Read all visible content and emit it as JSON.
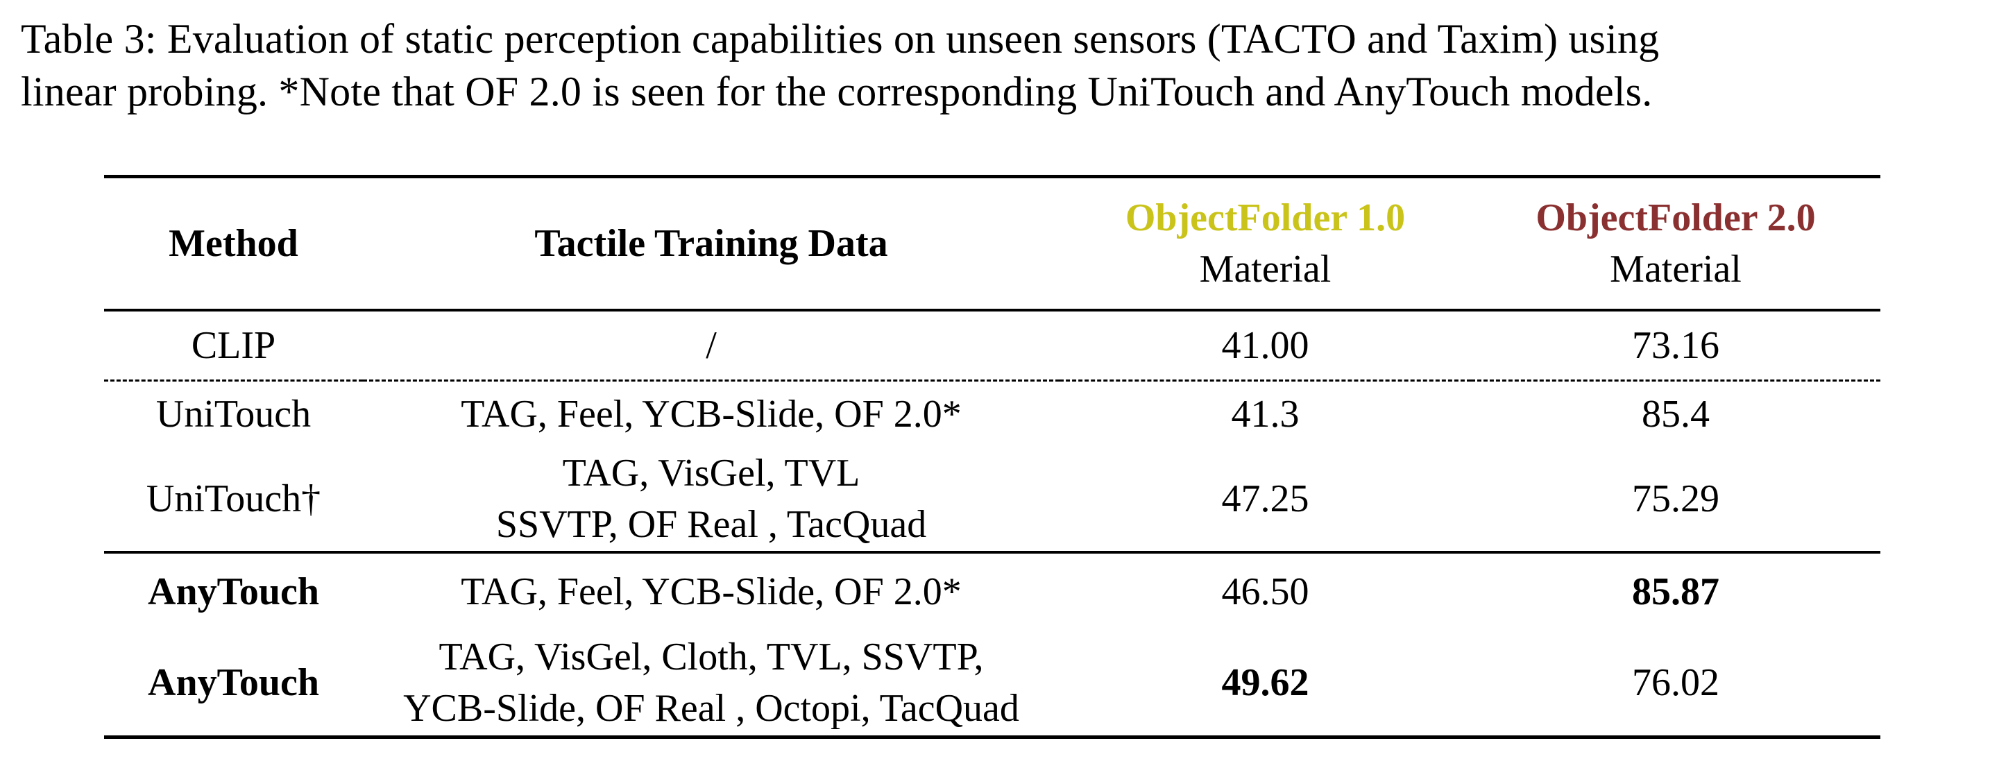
{
  "caption": {
    "line1": "Table 3: Evaluation of static perception capabilities on unseen sensors (TACTO and Taxim) using",
    "line2": "linear probing. *Note that OF 2.0 is seen for the corresponding UniTouch and AnyTouch models."
  },
  "table": {
    "headers": {
      "method": "Method",
      "data": "Tactile Training Data",
      "of1_title": "ObjectFolder 1.0",
      "of1_sub": "Material",
      "of2_title": "ObjectFolder 2.0",
      "of2_sub": "Material"
    },
    "rows": [
      {
        "method": "CLIP",
        "data_line1": "/",
        "data_line2": "",
        "of1": "41.00",
        "of2": "73.16"
      },
      {
        "method": "UniTouch",
        "data_line1": "TAG, Feel, YCB-Slide, OF 2.0*",
        "data_line2": "",
        "of1": "41.3",
        "of2": "85.4"
      },
      {
        "method": "UniTouch†",
        "data_line1": "TAG, VisGel, TVL",
        "data_line2": "SSVTP, OF Real , TacQuad",
        "of1": "47.25",
        "of2": "75.29"
      },
      {
        "method": "AnyTouch",
        "data_line1": "TAG, Feel, YCB-Slide, OF 2.0*",
        "data_line2": "",
        "of1": "46.50",
        "of2": "85.87"
      },
      {
        "method": "AnyTouch",
        "data_line1": "TAG, VisGel, Cloth, TVL, SSVTP,",
        "data_line2": "YCB-Slide, OF Real , Octopi, TacQuad",
        "of1": "49.62",
        "of2": "76.02"
      }
    ]
  },
  "colors": {
    "of1": "#c9c31a",
    "of2": "#8b3030"
  }
}
